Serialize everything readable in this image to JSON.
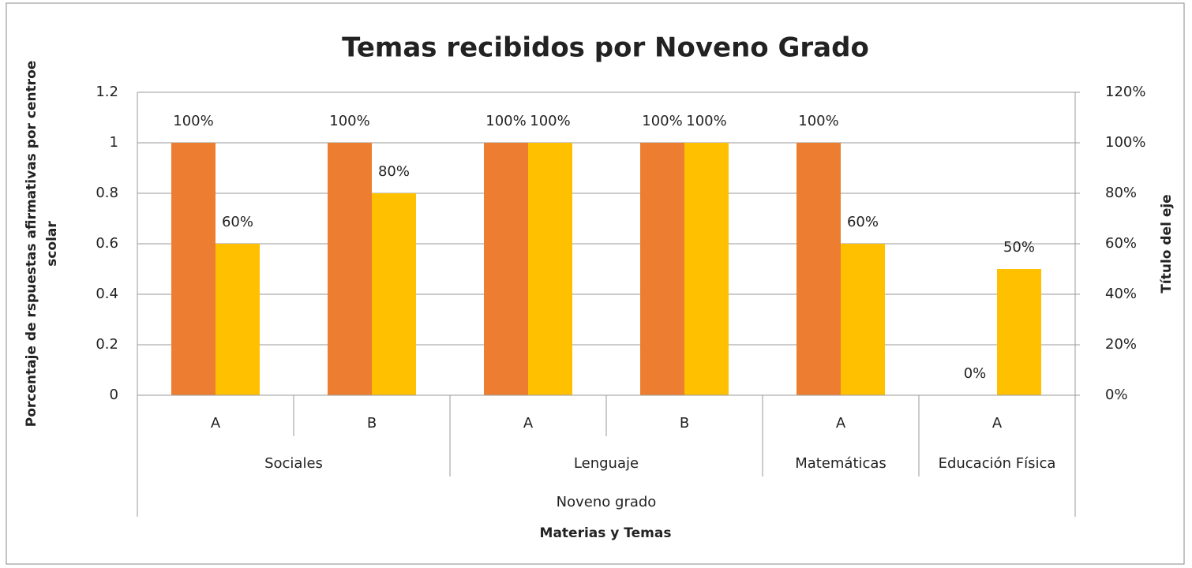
{
  "chart_data": {
    "type": "bar",
    "title": "Temas recibidos por Noveno Grado",
    "ylabel": [
      "Porcentaje de rspuestas  afirmativas por centroe",
      "scolar"
    ],
    "y2label": "Título del eje",
    "xlabel": "Materias y Temas",
    "outer_category": "Noveno grado",
    "category_groups": [
      {
        "name": "Sociales",
        "categories": [
          "A",
          "B"
        ]
      },
      {
        "name": "Lenguaje",
        "categories": [
          "A",
          "B"
        ]
      },
      {
        "name": "Matemáticas",
        "categories": [
          "A"
        ]
      },
      {
        "name": "Educación Física",
        "categories": [
          "A"
        ]
      }
    ],
    "series": [
      {
        "color": "#ED7D31",
        "values": [
          1,
          1,
          1,
          1,
          1,
          0
        ],
        "value_labels": [
          "100%",
          "100%",
          "100%",
          "100%",
          "100%",
          "0%"
        ]
      },
      {
        "color": "#FFC000",
        "axis": "y2",
        "values": [
          0.6,
          0.8,
          1,
          1,
          0.6,
          0.5
        ],
        "value_labels": [
          "60%",
          "80%",
          "100%",
          "100%",
          "60%",
          "50%"
        ]
      }
    ],
    "ylim": [
      0,
      1.2
    ],
    "yticks": [
      0,
      0.2,
      0.4,
      0.6,
      0.8,
      1,
      1.2
    ],
    "y2lim": [
      0,
      1.2
    ],
    "y2ticks": [
      {
        "value": 0,
        "label": "0%"
      },
      {
        "value": 0.2,
        "label": "20%"
      },
      {
        "value": 0.4,
        "label": "40%"
      },
      {
        "value": 0.6,
        "label": "60%"
      },
      {
        "value": 0.8,
        "label": "80%"
      },
      {
        "value": 1,
        "label": "100%"
      },
      {
        "value": 1.2,
        "label": "120%"
      }
    ],
    "grid": true
  }
}
